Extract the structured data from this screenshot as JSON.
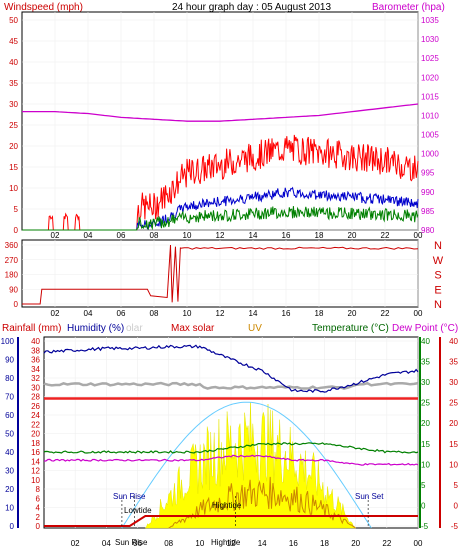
{
  "header": {
    "title": "24 hour graph day : 05 August 2013",
    "left_label": "Windspeed (mph)",
    "right_label": "Barometer (hpa)"
  },
  "wind_panel": {
    "left_ticks": [
      "50",
      "45",
      "40",
      "35",
      "30",
      "25",
      "20",
      "15",
      "10",
      "5",
      "0"
    ],
    "right_ticks": [
      "1035",
      "1030",
      "1025",
      "1020",
      "1015",
      "1010",
      "1005",
      "1000",
      "995",
      "990",
      "985",
      "980"
    ],
    "x_ticks": [
      "02",
      "04",
      "06",
      "08",
      "10",
      "12",
      "14",
      "16",
      "18",
      "20",
      "22",
      "00"
    ]
  },
  "dir_panel": {
    "left_ticks": [
      "360",
      "270",
      "180",
      "90",
      "0"
    ],
    "right_letters": [
      "N",
      "W",
      "S",
      "E",
      "N"
    ],
    "x_ticks": [
      "02",
      "04",
      "06",
      "08",
      "10",
      "12",
      "14",
      "16",
      "18",
      "20",
      "22",
      "00"
    ]
  },
  "bottom_panel": {
    "labels": {
      "rainfall": "Rainfall (mm)",
      "humidity": "Humidity (%)",
      "solar": "olar",
      "max_solar": "Max solar",
      "uv": "UV",
      "temperature": "Temperature (°C)",
      "dew_point": "Dew Point (°C)"
    },
    "humidity_ticks": [
      "100",
      "90",
      "80",
      "70",
      "60",
      "50",
      "40",
      "30",
      "20",
      "10",
      "0"
    ],
    "rain_ticks": [
      "40",
      "38",
      "36",
      "34",
      "32",
      "30",
      "28",
      "26",
      "24",
      "22",
      "20",
      "18",
      "16",
      "14",
      "12",
      "10",
      "8",
      "6",
      "4",
      "2",
      "0"
    ],
    "temp_ticks": [
      "40",
      "35",
      "30",
      "25",
      "20",
      "15",
      "10",
      "5",
      "0",
      "-5"
    ],
    "temp_ticks_right": [
      "40",
      "35",
      "30",
      "25",
      "20",
      "15",
      "10",
      "5",
      "0",
      "-5"
    ],
    "x_ticks": [
      "02",
      "04",
      "06",
      "08",
      "10",
      "12",
      "14",
      "16",
      "18",
      "20",
      "22",
      "00"
    ],
    "annotations": {
      "sun_rise": "Sun Rise",
      "low_tide": "Lowtide",
      "high_tide": "Hightide",
      "sun_set": "Sun Set",
      "sun_rise_axis": "Sun Rise",
      "high_tide_axis": "Hightide"
    }
  },
  "colors": {
    "wind": "#ff0000",
    "wind_avg": "#0000cc",
    "wind_low": "#008000",
    "barometer": "#cc00cc",
    "direction": "#cc0000",
    "humidity": "#000099",
    "temperature": "#008000",
    "dew_point": "#cc00cc",
    "solar": "#ffff00",
    "max_solar": "#66ccff",
    "uv": "#cc8800",
    "rain_axis": "#cc0000"
  },
  "chart_data": [
    {
      "type": "line",
      "title": "24 hour graph day : 05 August 2013",
      "ylabel": "Windspeed (mph)",
      "y2label": "Barometer (hpa)",
      "ylim": [
        0,
        50
      ],
      "y2lim": [
        980,
        1035
      ],
      "x": [
        "00",
        "02",
        "04",
        "06",
        "08",
        "10",
        "12",
        "14",
        "16",
        "18",
        "20",
        "22",
        "00"
      ],
      "series": [
        {
          "name": "Windspeed (mph)",
          "values": [
            0,
            0,
            2,
            0,
            0,
            8,
            10,
            12,
            14,
            13,
            12,
            11,
            9
          ]
        },
        {
          "name": "Barometer (hpa)",
          "values": [
            1011,
            1011,
            1010.5,
            1009.5,
            1009,
            1008.5,
            1008.5,
            1009,
            1009.5,
            1010,
            1011,
            1012,
            1013
          ]
        }
      ]
    },
    {
      "type": "line",
      "ylabel": "",
      "ylim": [
        0,
        360
      ],
      "x": [
        "00",
        "02",
        "04",
        "06",
        "08",
        "10",
        "12",
        "14",
        "16",
        "18",
        "20",
        "22",
        "00"
      ],
      "series": [
        {
          "name": "",
          "values": [
            90,
            90,
            90,
            90,
            90,
            340,
            340,
            340,
            340,
            340,
            340,
            340,
            340
          ]
        }
      ]
    },
    {
      "type": "line",
      "ylabel": "Humidity (%)",
      "y2label": "Temperature (°C)",
      "ylim": [
        0,
        100
      ],
      "y2lim": [
        -5,
        40
      ],
      "x": [
        "00",
        "02",
        "04",
        "06",
        "08",
        "10",
        "12",
        "14",
        "16",
        "18",
        "20",
        "22",
        "00"
      ],
      "series": [
        {
          "name": "Humidity (%)",
          "values": [
            94,
            95,
            96,
            96,
            97,
            97,
            90,
            84,
            73,
            73,
            77,
            82,
            84
          ]
        },
        {
          "name": "Temperature (°C)",
          "values": [
            13,
            13,
            13,
            13,
            13,
            13,
            14,
            15,
            15,
            15,
            14,
            13,
            13
          ]
        },
        {
          "name": "Dew Point (°C)",
          "values": [
            11,
            11,
            11,
            11,
            11,
            11,
            12,
            12,
            11,
            11,
            10,
            10,
            10
          ]
        }
      ]
    }
  ]
}
